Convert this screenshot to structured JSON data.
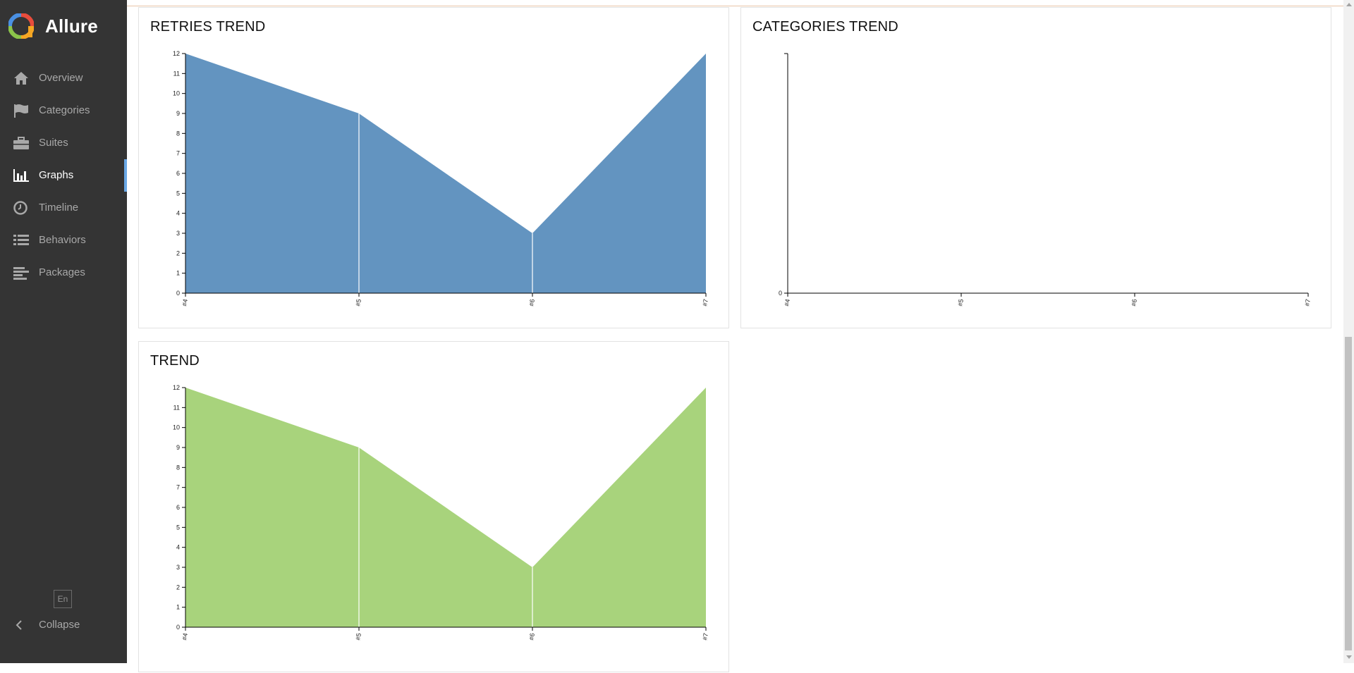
{
  "app": {
    "name": "Allure",
    "brand_colors": [
      "#e74c3c",
      "#f5a623",
      "#8bc34a",
      "#4a90e2"
    ]
  },
  "sidebar": {
    "items": [
      {
        "label": "Overview",
        "icon": "home-icon",
        "active": false
      },
      {
        "label": "Categories",
        "icon": "flag-icon",
        "active": false
      },
      {
        "label": "Suites",
        "icon": "briefcase-icon",
        "active": false
      },
      {
        "label": "Graphs",
        "icon": "bar-chart-icon",
        "active": true
      },
      {
        "label": "Timeline",
        "icon": "clock-icon",
        "active": false
      },
      {
        "label": "Behaviors",
        "icon": "list-icon",
        "active": false
      },
      {
        "label": "Packages",
        "icon": "align-left-icon",
        "active": false
      }
    ],
    "language": "En",
    "collapse_label": "Collapse",
    "active_indicator_color": "#6aa8e6"
  },
  "widgets": {
    "retries_trend": {
      "title": "RETRIES TREND"
    },
    "categories_trend": {
      "title": "CATEGORIES TREND"
    },
    "trend": {
      "title": "TREND"
    }
  },
  "chart_data": [
    {
      "id": "retries_trend",
      "type": "area",
      "title": "RETRIES TREND",
      "x": [
        "#4",
        "#5",
        "#6",
        "#7"
      ],
      "series": [
        {
          "values": [
            12,
            9,
            3,
            12
          ],
          "color": "#6394c0"
        }
      ],
      "ylim": [
        0,
        12
      ],
      "yticks": [
        0,
        1,
        2,
        3,
        4,
        5,
        6,
        7,
        8,
        9,
        10,
        11,
        12
      ],
      "grid": false
    },
    {
      "id": "categories_trend",
      "type": "area",
      "title": "CATEGORIES TREND",
      "x": [
        "#4",
        "#5",
        "#6",
        "#7"
      ],
      "series": [],
      "ylim": [
        0,
        1
      ],
      "yticks": [
        0
      ],
      "grid": false
    },
    {
      "id": "trend",
      "type": "area",
      "title": "TREND",
      "x": [
        "#4",
        "#5",
        "#6",
        "#7"
      ],
      "series": [
        {
          "values": [
            12,
            9,
            3,
            12
          ],
          "color": "#a8d37c"
        }
      ],
      "ylim": [
        0,
        12
      ],
      "yticks": [
        0,
        1,
        2,
        3,
        4,
        5,
        6,
        7,
        8,
        9,
        10,
        11,
        12
      ],
      "grid": false
    }
  ]
}
